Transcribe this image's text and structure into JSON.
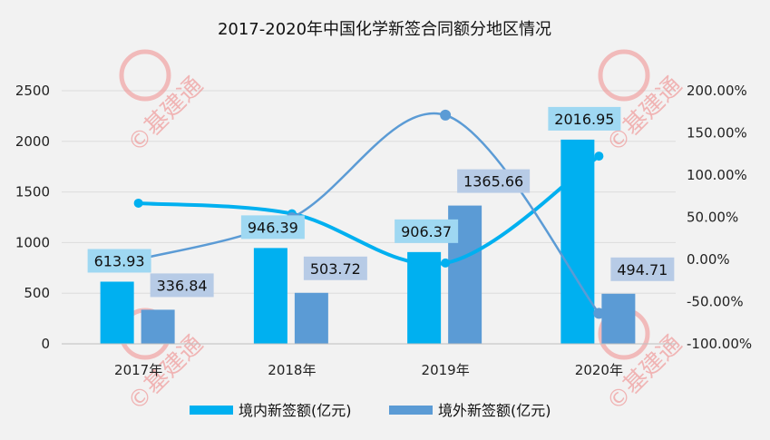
{
  "chart_data": {
    "type": "bar",
    "title": "2017-2020年中国化学新签合同额分地区情况",
    "categories": [
      "2017年",
      "2018年",
      "2019年",
      "2020年"
    ],
    "series": [
      {
        "name": "境内新签额(亿元)",
        "type": "bar",
        "axis": "left",
        "color": "#00b0f0",
        "label_bg": "#9fd8f2",
        "values": [
          613.93,
          946.39,
          906.37,
          2016.95
        ],
        "labels": [
          "613.93",
          "946.39",
          "906.37",
          "2016.95"
        ]
      },
      {
        "name": "境外新签额(亿元)",
        "type": "bar",
        "axis": "left",
        "color": "#5b9bd5",
        "label_bg": "#b7cbe6",
        "values": [
          336.84,
          503.72,
          1365.66,
          494.71
        ],
        "labels": [
          "336.84",
          "503.72",
          "1365.66",
          "494.71"
        ]
      },
      {
        "type": "line",
        "axis": "right",
        "color": "#00b0f0",
        "values": [
          66.7,
          54.2,
          -4.2,
          122.5
        ]
      },
      {
        "type": "line",
        "axis": "right",
        "color": "#5b9bd5",
        "values": [
          0,
          49.5,
          171.1,
          -63.8
        ]
      }
    ],
    "left_axis": {
      "range": [
        0,
        2500
      ],
      "ticks": [
        "0",
        "500",
        "1000",
        "1500",
        "2000",
        "2500"
      ]
    },
    "right_axis": {
      "range": [
        -100,
        200
      ],
      "unit": "%",
      "ticks": [
        "-100.00%",
        "-50.00%",
        "0.00%",
        "50.00%",
        "100.00%",
        "150.00%",
        "200.00%"
      ]
    },
    "grid": true,
    "legend_position": "bottom",
    "watermark": "©基建通 CINCT"
  }
}
